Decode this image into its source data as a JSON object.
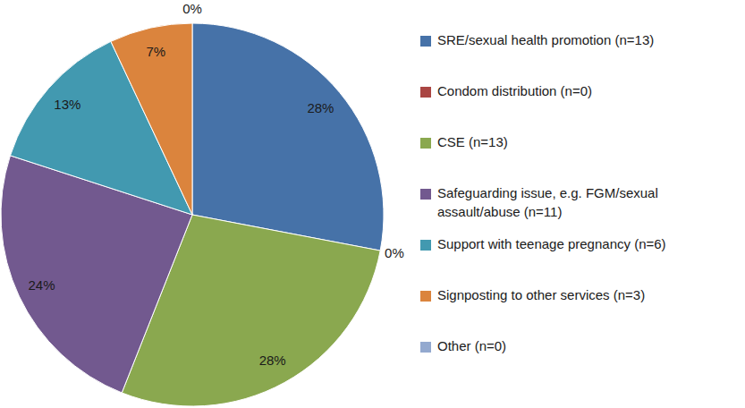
{
  "chart_data": {
    "type": "pie",
    "categories": [
      "SRE/sexual health promotion (n=13)",
      "Condom distribution (n=0)",
      "CSE (n=13)",
      "Safeguarding issue, e.g. FGM/sexual assault/abuse (n=11)",
      "Support with teenage pregnancy (n=6)",
      "Signposting to other services (n=3)",
      "Other (n=0)"
    ],
    "values": [
      28,
      0,
      28,
      24,
      13,
      7,
      0
    ],
    "value_labels": [
      "28%",
      "0%",
      "28%",
      "24%",
      "13%",
      "7%",
      "0%"
    ],
    "colors": [
      "#4672a8",
      "#aa4643",
      "#8aa84f",
      "#72598f",
      "#4299b0",
      "#db843d",
      "#93a9cf"
    ],
    "data_labels": true,
    "legend": "right"
  }
}
